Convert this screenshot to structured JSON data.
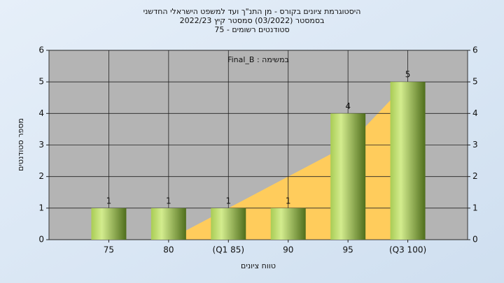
{
  "chart_data": {
    "type": "bar",
    "title": [
      "היסטוגרמת ציונים בקורס - מן התנ\"ך ועד למשפט הישראלי החדשני",
      "בסמסטר (03/2022) סמסטר קיץ 2022/23",
      "סטודנטים רשומים - 75"
    ],
    "annotation": "Final_B : במשימה",
    "x_label": "טווח ציונים",
    "y_label": "מספר סטודנטים",
    "categories": [
      "75",
      "80",
      "(Q1 85)",
      "90",
      "95",
      "(Q3 100)"
    ],
    "values": [
      1,
      1,
      1,
      1,
      4,
      5
    ],
    "color": "#8fb83a",
    "area": {
      "values": [
        null,
        0,
        1,
        2,
        3,
        5
      ],
      "color": "#ffcc5c"
    },
    "ylim": [
      0,
      6
    ],
    "yticks": [
      0,
      1,
      2,
      3,
      4,
      5,
      6
    ],
    "grid": true
  }
}
